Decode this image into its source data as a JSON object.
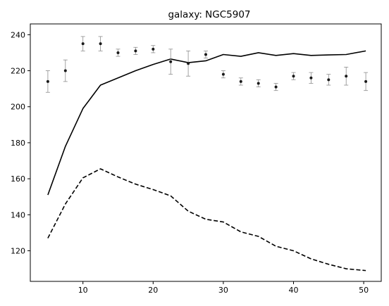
{
  "chart_data": {
    "type": "line",
    "title": "galaxy: NGC5907",
    "xlabel": "",
    "ylabel": "",
    "xlim": [
      2.5,
      52.5
    ],
    "ylim": [
      103,
      246
    ],
    "xticks": [
      10,
      20,
      30,
      40,
      50
    ],
    "yticks": [
      120,
      140,
      160,
      180,
      200,
      220,
      240
    ],
    "grid": false,
    "legend": "none",
    "colors": {
      "line": "#000000",
      "marker": "#1a1a1a",
      "errorbar": "#8c8c8c",
      "axes": "#000000"
    },
    "series": [
      {
        "style": "solid",
        "x": [
          5,
          7.5,
          10,
          12.5,
          15,
          17.5,
          20,
          22.5,
          25,
          27.5,
          30,
          32.5,
          35,
          37.5,
          40,
          42.5,
          45,
          47.5,
          50.3
        ],
        "y": [
          151,
          178,
          199,
          212,
          216,
          220,
          223.5,
          226.5,
          224.5,
          225.5,
          229,
          228,
          230,
          228.5,
          229.5,
          228.5,
          228.8,
          229,
          231
        ]
      },
      {
        "style": "dashed",
        "x": [
          5,
          7.5,
          10,
          12.5,
          15,
          17.5,
          20,
          22.5,
          25,
          27.5,
          30,
          32.5,
          35,
          37.5,
          40,
          42.5,
          45,
          47.5,
          50.3
        ],
        "y": [
          127,
          146,
          160.5,
          165.5,
          161,
          157,
          154,
          150.5,
          142,
          137.5,
          136,
          130.5,
          128,
          122.5,
          120,
          115.5,
          112.5,
          110,
          109
        ]
      },
      {
        "style": "errorbar",
        "x": [
          5,
          7.5,
          10,
          12.5,
          15,
          17.5,
          20,
          22.5,
          25,
          27.5,
          30,
          32.5,
          35,
          37.5,
          40,
          42.5,
          45,
          47.5,
          50.3
        ],
        "y": [
          214,
          220,
          235,
          235,
          230,
          231,
          232,
          225,
          224,
          229,
          218,
          214,
          213,
          211,
          217,
          216,
          215,
          217,
          214
        ],
        "err": [
          6,
          6,
          4,
          4,
          2,
          2,
          2,
          7,
          7,
          2,
          2,
          2,
          2,
          2,
          2,
          3,
          3,
          5,
          5
        ]
      }
    ]
  }
}
